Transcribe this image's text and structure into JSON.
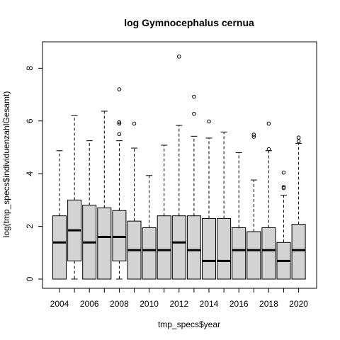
{
  "chart_data": {
    "type": "boxplot",
    "title": "log Gymnocephalus cernua",
    "xlabel": "tmp_specs$year",
    "ylabel": "log(tmp_specs$individuenzahlGesamt)",
    "categories": [
      "2004",
      "2005",
      "2006",
      "2007",
      "2008",
      "2009",
      "2010",
      "2011",
      "2012",
      "2013",
      "2014",
      "2015",
      "2016",
      "2017",
      "2018",
      "2019",
      "2020"
    ],
    "x_tick_labels": [
      "2004",
      "2006",
      "2008",
      "2010",
      "2012",
      "2014",
      "2016",
      "2018",
      "2020"
    ],
    "y_ticks": [
      "0",
      "2",
      "4",
      "6",
      "8"
    ],
    "ylim": [
      0,
      8.6
    ],
    "box_fill": "#d3d3d3",
    "boxes": [
      {
        "min": 0,
        "q1": 0,
        "median": 1.39,
        "q3": 2.4,
        "max": 4.87,
        "outliers": []
      },
      {
        "min": 0,
        "q1": 0.69,
        "median": 1.85,
        "q3": 3.0,
        "max": 6.2,
        "outliers": []
      },
      {
        "min": 0,
        "q1": 0,
        "median": 1.39,
        "q3": 2.8,
        "max": 5.25,
        "outliers": []
      },
      {
        "min": 0,
        "q1": 0,
        "median": 1.6,
        "q3": 2.7,
        "max": 6.37,
        "outliers": []
      },
      {
        "min": 0,
        "q1": 0.69,
        "median": 1.6,
        "q3": 2.6,
        "max": 5.25,
        "outliers": [
          5.5,
          5.9,
          5.95,
          7.2
        ]
      },
      {
        "min": 0,
        "q1": 0,
        "median": 1.1,
        "q3": 2.2,
        "max": 4.97,
        "outliers": [
          5.9
        ]
      },
      {
        "min": 0,
        "q1": 0,
        "median": 1.1,
        "q3": 1.95,
        "max": 3.93,
        "outliers": []
      },
      {
        "min": 0,
        "q1": 0,
        "median": 1.1,
        "q3": 2.4,
        "max": 5.08,
        "outliers": []
      },
      {
        "min": 0,
        "q1": 0,
        "median": 1.39,
        "q3": 2.4,
        "max": 5.83,
        "outliers": [
          8.44
        ]
      },
      {
        "min": 0,
        "q1": 0,
        "median": 1.1,
        "q3": 2.4,
        "max": 5.42,
        "outliers": [
          6.27,
          6.92
        ]
      },
      {
        "min": 0,
        "q1": 0,
        "median": 0.69,
        "q3": 2.3,
        "max": 5.35,
        "outliers": [
          5.98
        ]
      },
      {
        "min": 0,
        "q1": 0,
        "median": 0.69,
        "q3": 2.3,
        "max": 5.58,
        "outliers": []
      },
      {
        "min": 0,
        "q1": 0,
        "median": 1.1,
        "q3": 1.95,
        "max": 4.8,
        "outliers": []
      },
      {
        "min": 0,
        "q1": 0,
        "median": 1.1,
        "q3": 1.8,
        "max": 3.76,
        "outliers": [
          5.4,
          5.48
        ]
      },
      {
        "min": 0,
        "q1": 0,
        "median": 1.1,
        "q3": 1.95,
        "max": 4.87,
        "outliers": [
          4.93,
          5.9
        ]
      },
      {
        "min": 0,
        "q1": 0,
        "median": 0.69,
        "q3": 1.39,
        "max": 3.18,
        "outliers": [
          3.45,
          3.5,
          4.04
        ]
      },
      {
        "min": 0,
        "q1": 0,
        "median": 1.1,
        "q3": 2.08,
        "max": 5.15,
        "outliers": [
          5.23,
          5.37
        ]
      }
    ]
  }
}
